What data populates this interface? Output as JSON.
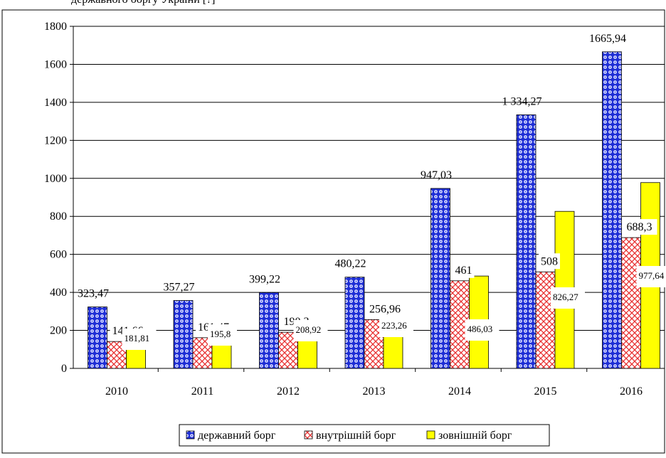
{
  "page": {
    "caption_fragment": "державного боргу України [?]"
  },
  "chart_data": {
    "type": "bar",
    "categories": [
      "2010",
      "2011",
      "2012",
      "2013",
      "2014",
      "2015",
      "2016"
    ],
    "series": [
      {
        "name": "державний борг",
        "values": [
          323.47,
          357.27,
          399.22,
          480.22,
          947.03,
          1334.27,
          1665.94
        ],
        "labels": [
          "323,47",
          "357,27",
          "399,22",
          "480,22",
          "947,03",
          "1 334,27",
          "1665,94"
        ],
        "color": "#1f2fd6",
        "pattern": "dots"
      },
      {
        "name": "внутрішній борг",
        "values": [
          141.66,
          161.47,
          190.3,
          256.96,
          461,
          508,
          688.3
        ],
        "labels": [
          "141,66",
          "161,47",
          "190,3",
          "256,96",
          "461",
          "508",
          "688,3"
        ],
        "color": "#e83030",
        "pattern": "crosshatch"
      },
      {
        "name": "зовнішній борг",
        "values": [
          181.81,
          195.8,
          208.92,
          223.26,
          486.03,
          826.27,
          977.64
        ],
        "labels": [
          "181,81",
          "195,8",
          "208,92",
          "223,26",
          "486,03",
          "826,27",
          "977,64"
        ],
        "color": "#ffff00",
        "pattern": "solid"
      }
    ],
    "ylim": [
      0,
      1800
    ],
    "yticks": [
      0,
      200,
      400,
      600,
      800,
      1000,
      1200,
      1400,
      1600,
      1800
    ],
    "grid": true,
    "legend": "bottom",
    "title": "",
    "xlabel": "",
    "ylabel": ""
  }
}
